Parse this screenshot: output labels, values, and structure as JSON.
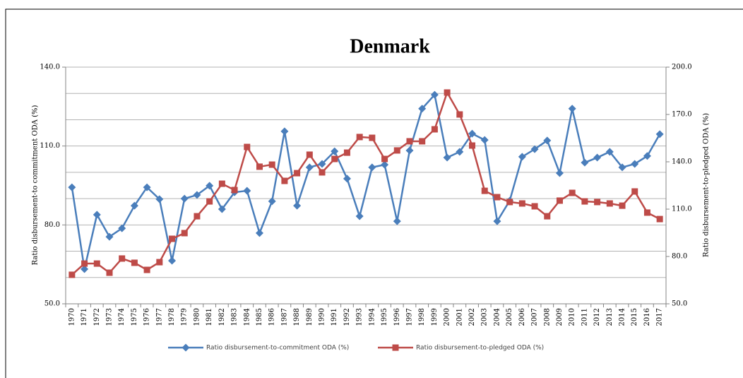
{
  "chart_data": {
    "type": "line",
    "title": "Denmark",
    "y_label": "Ratio disbursement-to commitment ODA (%)",
    "y2_label": "Ratio disbursement-to-pledged ODA (%)",
    "categories": [
      "1970",
      "1971",
      "1972",
      "1973",
      "1974",
      "1975",
      "1976",
      "1977",
      "1978",
      "1979",
      "1980",
      "1981",
      "1982",
      "1983",
      "1984",
      "1985",
      "1986",
      "1987",
      "1988",
      "1989",
      "1990",
      "1991",
      "1992",
      "1993",
      "1994",
      "1995",
      "1996",
      "1997",
      "1998",
      "1999",
      "2000",
      "2001",
      "2002",
      "2003",
      "2004",
      "2005",
      "2006",
      "2007",
      "2008",
      "2009",
      "2010",
      "2011",
      "2012",
      "2013",
      "2014",
      "2015",
      "2016",
      "2017"
    ],
    "series": [
      {
        "name": "Ratio disbursement-to-commitment ODA (%)",
        "color": "#4a7ebb",
        "marker": "diamond",
        "values": [
          94.3,
          63.2,
          83.9,
          75.5,
          78.7,
          87.3,
          94.3,
          89.8,
          66.4,
          90.0,
          91.4,
          94.9,
          86.0,
          92.4,
          93.0,
          76.9,
          89.0,
          115.6,
          87.3,
          101.9,
          103.2,
          108.0,
          97.6,
          83.3,
          101.9,
          102.9,
          81.4,
          108.3,
          124.2,
          129.5,
          105.6,
          107.8,
          114.7,
          112.3,
          81.4,
          89.2,
          105.9,
          108.8,
          112.1,
          99.7,
          124.2,
          103.7,
          105.6,
          107.8,
          101.9,
          103.2,
          106.2,
          114.5
        ]
      },
      {
        "name": "Ratio disbursement-to-pledged ODA (%)",
        "color": "#be4b48",
        "marker": "square",
        "axis": "y2",
        "values": [
          68.4,
          75.5,
          75.5,
          69.7,
          78.7,
          76.0,
          71.5,
          76.4,
          91.2,
          94.8,
          105.5,
          114.9,
          126.1,
          122.1,
          149.4,
          136.9,
          138.2,
          127.9,
          132.8,
          144.5,
          133.3,
          141.8,
          145.8,
          155.7,
          155.2,
          141.8,
          147.2,
          153.0,
          153.0,
          160.6,
          183.9,
          170.0,
          150.3,
          121.6,
          117.6,
          114.5,
          113.6,
          111.8,
          105.5,
          115.4,
          120.3,
          114.9,
          114.5,
          113.6,
          112.2,
          121.2,
          107.8,
          103.7
        ]
      }
    ],
    "ylim": [
      50,
      140
    ],
    "yticks": [
      {
        "value": 50,
        "label": "50.0"
      },
      {
        "value": 80,
        "label": "80.0"
      },
      {
        "value": 110,
        "label": "110.0"
      },
      {
        "value": 140,
        "label": "140.0"
      }
    ],
    "minor_yticks": [
      60,
      70,
      90,
      100,
      120,
      130
    ],
    "y2lim": [
      50,
      200
    ],
    "y2ticks": [
      {
        "value": 50,
        "label": "50.0"
      },
      {
        "value": 80,
        "label": "80.0"
      },
      {
        "value": 110,
        "label": "110.0"
      },
      {
        "value": 140,
        "label": "140.0"
      },
      {
        "value": 170,
        "label": "170.0"
      },
      {
        "value": 200,
        "label": "200.0"
      }
    ],
    "grid": true,
    "legend": "bottom"
  }
}
